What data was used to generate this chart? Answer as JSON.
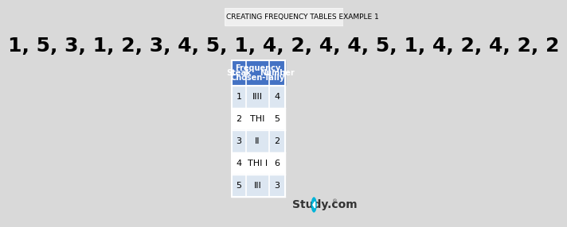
{
  "title": "CREATING FREQUENCY TABLES EXAMPLE 1",
  "sequence": "1, 5, 3, 1, 2, 3, 4, 5, 1, 4, 2, 4, 4, 5, 1, 4, 2, 4, 2, 2",
  "bg_color": "#d9d9d9",
  "header_bg": "#4472c4",
  "header_text_color": "#ffffff",
  "row_alt1": "#dce6f1",
  "row_alt2": "#ffffff",
  "col_headers": [
    "Steak",
    "Frequency\nChosen-Tally",
    "Number"
  ],
  "rows": [
    [
      "1",
      "IIII",
      "4"
    ],
    [
      "2",
      "THI",
      "5"
    ],
    [
      "3",
      "II",
      "2"
    ],
    [
      "4",
      "THI I",
      "6"
    ],
    [
      "5",
      "III",
      "3"
    ]
  ],
  "title_fontsize": 7,
  "seq_fontsize": 18,
  "table_fontsize": 8
}
